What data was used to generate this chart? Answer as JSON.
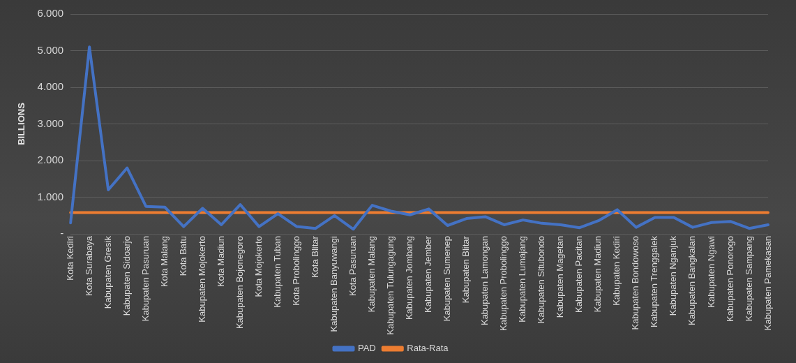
{
  "chart_data": {
    "type": "line",
    "ylabel": "BILLIONS",
    "categories": [
      "Kota Kediri",
      "Kota Surabaya",
      "Kabupaten Gresik",
      "Kabupaten Sidoarjo",
      "Kabupaten Pasuruan",
      "Kota Malang",
      "Kota Batu",
      "Kabupaten Mojokerto",
      "Kota Madiun",
      "Kabupaten Bojonegoro",
      "Kota Mojokerto",
      "Kabupaten Tuban",
      "Kota Probolinggo",
      "Kota Blitar",
      "Kabupaten Banyuwangi",
      "Kota Pasuruan",
      "Kabupaten Malang",
      "Kabupaten Tulungagung",
      "Kabupaten Jombang",
      "Kabupaten Jember",
      "Kabupaten Sumenep",
      "Kabupaten Blitar",
      "Kabupaten Lamongan",
      "Kabupaten Probolinggo",
      "Kabupaten Lumajang",
      "Kabupaten Situbondo",
      "Kabupaten Magetan",
      "Kabupaten Pacitan",
      "Kabupaten Madiun",
      "Kabupaten Kediri",
      "Kabupaten Bondowoso",
      "Kabupaten Trenggalek",
      "Kabupaten Nganjuk",
      "Kabupaten Bangkalan",
      "Kabupaten Ngawi",
      "Kabupaten Ponorogo",
      "Kabupaten Sampang",
      "Kabupaten Pamekasan"
    ],
    "series": [
      {
        "name": "PAD",
        "color": "#4472c4",
        "values": [
          300,
          5100,
          1200,
          1800,
          750,
          730,
          200,
          700,
          250,
          800,
          200,
          550,
          200,
          150,
          500,
          130,
          780,
          620,
          520,
          680,
          230,
          420,
          470,
          250,
          380,
          290,
          250,
          170,
          360,
          660,
          180,
          450,
          450,
          180,
          310,
          340,
          150,
          250
        ]
      },
      {
        "name": "Rata-Rata",
        "color": "#ed7d31",
        "values": [
          580,
          580,
          580,
          580,
          580,
          580,
          580,
          580,
          580,
          580,
          580,
          580,
          580,
          580,
          580,
          580,
          580,
          580,
          580,
          580,
          580,
          580,
          580,
          580,
          580,
          580,
          580,
          580,
          580,
          580,
          580,
          580,
          580,
          580,
          580,
          580,
          580,
          580
        ]
      }
    ],
    "ylim": [
      0,
      6000
    ],
    "yticks": [
      {
        "value": 0,
        "label": "-"
      },
      {
        "value": 1000,
        "label": "1.000"
      },
      {
        "value": 2000,
        "label": "2.000"
      },
      {
        "value": 3000,
        "label": "3.000"
      },
      {
        "value": 4000,
        "label": "4.000"
      },
      {
        "value": 5000,
        "label": "5.000"
      },
      {
        "value": 6000,
        "label": "6.000"
      }
    ],
    "grid": "y",
    "legend": "bottom",
    "marker": "none",
    "line_style": "solid"
  }
}
